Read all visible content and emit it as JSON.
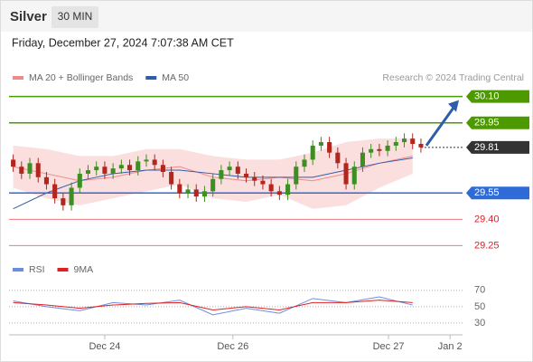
{
  "header": {
    "title": "Silver",
    "interval": "30 MIN",
    "timestamp": "Friday, December 27, 2024 7:07:38 AM CET",
    "credit": "Research © 2024 Trading Central"
  },
  "chart_data": [
    {
      "type": "candlestick",
      "up_color": "#3d8f22",
      "down_color": "#b3261e",
      "x": [
        0,
        1,
        2,
        3,
        4,
        5,
        6,
        7,
        8,
        9,
        10,
        11,
        12,
        13,
        14,
        15,
        16,
        17,
        18,
        19,
        20,
        21,
        22,
        23,
        24,
        25,
        26,
        27,
        28,
        29,
        30,
        31,
        32,
        33,
        34,
        35,
        36,
        37,
        38,
        39,
        40,
        41,
        42,
        43,
        44,
        45,
        46,
        47,
        48,
        49
      ],
      "open": [
        29.74,
        29.7,
        29.66,
        29.72,
        29.64,
        29.6,
        29.52,
        29.48,
        29.58,
        29.66,
        29.68,
        29.7,
        29.66,
        29.69,
        29.71,
        29.68,
        29.73,
        29.74,
        29.71,
        29.67,
        29.6,
        29.55,
        29.57,
        29.53,
        29.56,
        29.63,
        29.68,
        29.7,
        29.66,
        29.64,
        29.62,
        29.6,
        29.56,
        29.54,
        29.6,
        29.7,
        29.74,
        29.82,
        29.84,
        29.78,
        29.72,
        29.6,
        29.7,
        29.78,
        29.8,
        29.79,
        29.82,
        29.84,
        29.86,
        29.83
      ],
      "high": [
        29.77,
        29.73,
        29.75,
        29.75,
        29.67,
        29.63,
        29.55,
        29.61,
        29.69,
        29.71,
        29.73,
        29.73,
        29.72,
        29.74,
        29.74,
        29.76,
        29.77,
        29.77,
        29.74,
        29.7,
        29.63,
        29.6,
        29.6,
        29.59,
        29.66,
        29.71,
        29.73,
        29.73,
        29.69,
        29.67,
        29.65,
        29.63,
        29.59,
        29.63,
        29.73,
        29.77,
        29.85,
        29.87,
        29.87,
        29.81,
        29.75,
        29.73,
        29.81,
        29.83,
        29.83,
        29.85,
        29.87,
        29.89,
        29.89,
        29.86
      ],
      "low": [
        29.67,
        29.63,
        29.63,
        29.61,
        29.57,
        29.49,
        29.45,
        29.45,
        29.55,
        29.63,
        29.65,
        29.63,
        29.63,
        29.66,
        29.65,
        29.65,
        29.7,
        29.68,
        29.64,
        29.57,
        29.52,
        29.52,
        29.5,
        29.5,
        29.53,
        29.6,
        29.65,
        29.63,
        29.61,
        29.59,
        29.57,
        29.53,
        29.51,
        29.51,
        29.57,
        29.67,
        29.71,
        29.79,
        29.75,
        29.69,
        29.57,
        29.57,
        29.67,
        29.75,
        29.76,
        29.76,
        29.79,
        29.81,
        29.8,
        29.78
      ],
      "close": [
        29.7,
        29.66,
        29.72,
        29.64,
        29.6,
        29.52,
        29.48,
        29.58,
        29.66,
        29.68,
        29.7,
        29.66,
        29.69,
        29.71,
        29.68,
        29.73,
        29.74,
        29.71,
        29.67,
        29.6,
        29.55,
        29.57,
        29.53,
        29.56,
        29.63,
        29.68,
        29.7,
        29.66,
        29.64,
        29.62,
        29.6,
        29.56,
        29.54,
        29.6,
        29.7,
        29.74,
        29.82,
        29.84,
        29.78,
        29.72,
        29.6,
        29.7,
        29.78,
        29.8,
        29.79,
        29.82,
        29.84,
        29.86,
        29.83,
        29.81
      ],
      "series": [
        {
          "name": "MA 20 + Bollinger Bands",
          "color": "#f08a8a",
          "band_color": "#fbdede",
          "x": [
            0,
            4,
            8,
            12,
            16,
            20,
            24,
            28,
            32,
            36,
            40,
            44,
            48
          ],
          "values": [
            29.7,
            29.66,
            29.62,
            29.64,
            29.68,
            29.7,
            29.64,
            29.62,
            29.64,
            29.62,
            29.66,
            29.72,
            29.76
          ],
          "upper": [
            29.82,
            29.8,
            29.76,
            29.76,
            29.8,
            29.8,
            29.76,
            29.74,
            29.74,
            29.78,
            29.84,
            29.86,
            29.86
          ],
          "lower": [
            29.58,
            29.52,
            29.48,
            29.52,
            29.56,
            29.6,
            29.52,
            29.5,
            29.54,
            29.46,
            29.48,
            29.58,
            29.66
          ]
        },
        {
          "name": "MA 50",
          "color": "#2f5ea8",
          "x": [
            0,
            4,
            8,
            12,
            16,
            20,
            24,
            28,
            32,
            36,
            40,
            44,
            48
          ],
          "values": [
            29.46,
            29.55,
            29.62,
            29.66,
            29.68,
            29.68,
            29.66,
            29.64,
            29.64,
            29.64,
            29.68,
            29.72,
            29.75
          ]
        }
      ],
      "levels": [
        {
          "value": 30.1,
          "label": "30.10",
          "color": "#4c9a00",
          "boxed": true,
          "line": "solid"
        },
        {
          "value": 29.95,
          "label": "29.95",
          "color": "#4c9a00",
          "boxed": true,
          "line": "solid"
        },
        {
          "value": 29.81,
          "label": "29.81",
          "color": "#333333",
          "boxed": true,
          "line": "dotted"
        },
        {
          "value": 29.55,
          "label": "29.55",
          "color": "#2f6bd8",
          "boxed": true,
          "line": "solid"
        },
        {
          "value": 29.4,
          "label": "29.40",
          "color": "#e0202a",
          "boxed": false,
          "line": "solid"
        },
        {
          "value": 29.25,
          "label": "29.25",
          "color": "#e0202a",
          "boxed": false,
          "line": "solid"
        }
      ],
      "xlim": [
        -0.5,
        54
      ],
      "ylim": [
        29.18,
        30.16
      ]
    },
    {
      "type": "line",
      "series": [
        {
          "name": "RSI",
          "color": "#6b8de0",
          "x": [
            0,
            4,
            8,
            12,
            16,
            20,
            24,
            28,
            32,
            36,
            40,
            44,
            48
          ],
          "values": [
            57,
            50,
            45,
            55,
            52,
            58,
            40,
            48,
            42,
            60,
            55,
            62,
            52
          ]
        },
        {
          "name": "9MA",
          "color": "#e02020",
          "x": [
            0,
            4,
            8,
            12,
            16,
            20,
            24,
            28,
            32,
            36,
            40,
            44,
            48
          ],
          "values": [
            55,
            52,
            48,
            52,
            54,
            55,
            46,
            50,
            46,
            55,
            55,
            58,
            55
          ]
        }
      ],
      "xlim": [
        -0.5,
        54
      ],
      "ylim": [
        21,
        82
      ],
      "yticks": [
        30,
        50,
        70
      ],
      "xticks": [
        {
          "value": 11,
          "label": "Dec 24"
        },
        {
          "value": 26.4,
          "label": "Dec 26"
        },
        {
          "value": 45.1,
          "label": "Dec 27"
        },
        {
          "value": 52.5,
          "label": "Jan 2"
        }
      ]
    }
  ]
}
